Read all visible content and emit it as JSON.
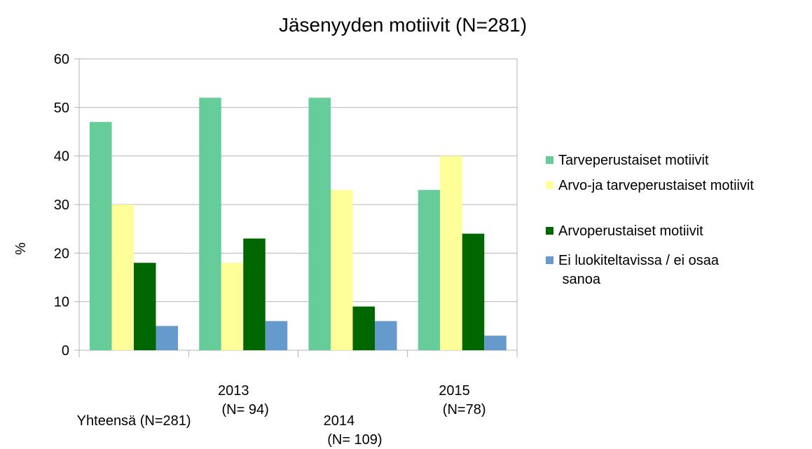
{
  "chart_data": {
    "type": "bar",
    "title": "Jäsenyyden motiivit  (N=281)",
    "y_label": "%",
    "categories": [
      "Yhteensä (N=281)",
      "2013\n(N= 94)",
      "2014\n(N= 109)",
      "2015\n(N=78)"
    ],
    "series": [
      {
        "name": "Tarveperustaiset motiivit",
        "color": "#66cc99",
        "values": [
          47,
          52,
          52,
          33
        ]
      },
      {
        "name": "Arvo-ja tarveperustaiset motiivit",
        "color": "#ffff99",
        "values": [
          30,
          18,
          33,
          40
        ]
      },
      {
        "name": "Arvoperustaiset motiivit",
        "color": "#006600",
        "values": [
          18,
          23,
          9,
          24
        ]
      },
      {
        "name": "Ei luokiteltavissa / ei osaa\nsanoa",
        "color": "#6699cc",
        "values": [
          5,
          6,
          6,
          3
        ]
      }
    ],
    "ylim": [
      0,
      60
    ],
    "yticks": [
      0,
      10,
      20,
      30,
      40,
      50,
      60
    ],
    "grid": true,
    "legend": "right"
  }
}
